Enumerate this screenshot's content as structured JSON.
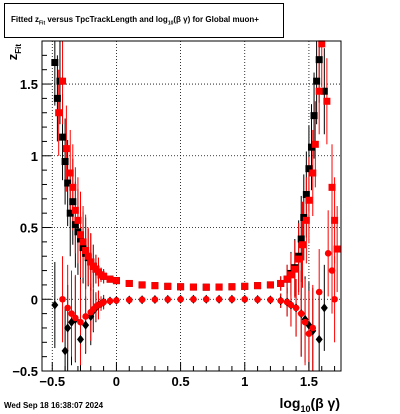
{
  "footer": {
    "timestamp": "Wed Sep 18 16:38:07 2024"
  },
  "chart_data": {
    "type": "scatter",
    "title": "Fitted z_Fit versus TpcTrackLength and log_10(β γ) for Global muon+",
    "title_parts": {
      "pre": "Fitted  z",
      "sub1": "Fit",
      "mid": "  versus TpcTrackLength and log",
      "sub2": "10",
      "post": "(β γ) for Global muon+"
    },
    "xlabel_parts": {
      "main": "log",
      "sub": "10",
      "tail": "(β γ)"
    },
    "ylabel_parts": {
      "main": "z",
      "sub": "Fit"
    },
    "xlim": [
      -0.58,
      1.75
    ],
    "ylim": [
      -0.5,
      1.8
    ],
    "grid": true,
    "xticks": [
      -0.5,
      0,
      0.5,
      1,
      1.5
    ],
    "xtick_labels": [
      "−0.5",
      "0",
      "0.5",
      "1",
      "1.5"
    ],
    "yticks": [
      -0.5,
      0,
      0.5,
      1,
      1.5
    ],
    "ytick_labels": [
      "−0.5",
      "0",
      "0.5",
      "1",
      "1.5"
    ],
    "series": [
      {
        "color": "#000000",
        "marker": "square",
        "points": [
          [
            -0.48,
            1.65,
            0.3
          ],
          [
            -0.46,
            1.4,
            0.3
          ],
          [
            -0.44,
            1.52,
            0.3
          ],
          [
            -0.42,
            1.13,
            0.3
          ],
          [
            -0.4,
            0.96,
            0.3
          ],
          [
            -0.38,
            0.81,
            0.3
          ],
          [
            -0.36,
            0.6,
            0.3
          ],
          [
            -0.34,
            0.68,
            0.3
          ],
          [
            -0.32,
            0.52,
            0.3
          ],
          [
            -0.3,
            0.47,
            0.3
          ],
          [
            -0.28,
            0.42,
            0.3
          ],
          [
            -0.26,
            0.36,
            0.25
          ],
          [
            -0.24,
            0.32,
            0.25
          ],
          [
            -0.22,
            0.29,
            0.2
          ],
          [
            -0.2,
            0.26,
            0.2
          ],
          [
            -0.18,
            0.23,
            0.15
          ],
          [
            -0.16,
            0.21,
            0.1
          ],
          [
            -0.14,
            0.19,
            0.1
          ],
          [
            -0.12,
            0.17,
            0.05
          ],
          [
            -0.1,
            0.16,
            0.05
          ],
          [
            -0.05,
            0.14,
            0
          ],
          [
            0.0,
            0.13,
            0
          ],
          [
            0.1,
            0.11,
            0
          ],
          [
            0.2,
            0.1,
            0
          ],
          [
            0.3,
            0.095,
            0
          ],
          [
            0.4,
            0.09,
            0
          ],
          [
            0.5,
            0.087,
            0
          ],
          [
            0.6,
            0.085,
            0
          ],
          [
            0.7,
            0.084,
            0
          ],
          [
            0.8,
            0.085,
            0
          ],
          [
            0.9,
            0.087,
            0
          ],
          [
            1.0,
            0.09,
            0
          ],
          [
            1.1,
            0.095,
            0
          ],
          [
            1.2,
            0.1,
            0
          ],
          [
            1.28,
            0.11,
            0.05
          ],
          [
            1.33,
            0.14,
            0.1
          ],
          [
            1.36,
            0.18,
            0.15
          ],
          [
            1.39,
            0.22,
            0.2
          ],
          [
            1.42,
            0.3,
            0.25
          ],
          [
            1.44,
            0.42,
            0.3
          ],
          [
            1.46,
            0.57,
            0.3
          ],
          [
            1.48,
            0.73,
            0.3
          ],
          [
            1.5,
            0.91,
            0.3
          ],
          [
            1.52,
            1.06,
            0.3
          ],
          [
            1.54,
            1.28,
            0.3
          ],
          [
            1.56,
            1.52,
            0.3
          ],
          [
            1.58,
            1.67,
            0.3
          ],
          [
            1.62,
            1.45,
            0.3
          ]
        ]
      },
      {
        "color": "#ff0000",
        "marker": "square",
        "points": [
          [
            -0.45,
            1.3,
            0.3
          ],
          [
            -0.42,
            1.52,
            0.3
          ],
          [
            -0.39,
            1.05,
            0.3
          ],
          [
            -0.36,
            0.88,
            0.3
          ],
          [
            -0.34,
            0.78,
            0.3
          ],
          [
            -0.32,
            0.62,
            0.3
          ],
          [
            -0.3,
            0.55,
            0.3
          ],
          [
            -0.28,
            0.45,
            0.3
          ],
          [
            -0.26,
            0.4,
            0.25
          ],
          [
            -0.24,
            0.34,
            0.25
          ],
          [
            -0.22,
            0.3,
            0.2
          ],
          [
            -0.2,
            0.26,
            0.2
          ],
          [
            -0.18,
            0.23,
            0.15
          ],
          [
            -0.16,
            0.21,
            0.1
          ],
          [
            -0.14,
            0.19,
            0.1
          ],
          [
            -0.12,
            0.17,
            0.05
          ],
          [
            -0.1,
            0.16,
            0.05
          ],
          [
            -0.05,
            0.14,
            0
          ],
          [
            0.0,
            0.13,
            0
          ],
          [
            0.1,
            0.11,
            0
          ],
          [
            0.2,
            0.1,
            0
          ],
          [
            0.3,
            0.095,
            0
          ],
          [
            0.4,
            0.09,
            0
          ],
          [
            0.5,
            0.087,
            0
          ],
          [
            0.6,
            0.085,
            0
          ],
          [
            0.7,
            0.084,
            0
          ],
          [
            0.8,
            0.085,
            0
          ],
          [
            0.9,
            0.087,
            0
          ],
          [
            1.0,
            0.09,
            0
          ],
          [
            1.1,
            0.095,
            0
          ],
          [
            1.2,
            0.1,
            0
          ],
          [
            1.28,
            0.11,
            0.05
          ],
          [
            1.33,
            0.14,
            0.1
          ],
          [
            1.36,
            0.17,
            0.15
          ],
          [
            1.39,
            0.21,
            0.2
          ],
          [
            1.42,
            0.28,
            0.25
          ],
          [
            1.45,
            0.38,
            0.3
          ],
          [
            1.48,
            0.55,
            0.3
          ],
          [
            1.5,
            0.69,
            0.3
          ],
          [
            1.53,
            0.88,
            0.3
          ],
          [
            1.55,
            1.08,
            0.3
          ],
          [
            1.58,
            1.45,
            0.3
          ],
          [
            1.6,
            1.78,
            0.3
          ],
          [
            1.64,
            1.38,
            0.3
          ],
          [
            1.68,
            0.78,
            0.3
          ],
          [
            1.7,
            0.55,
            0.3
          ],
          [
            1.72,
            0.35,
            0.3
          ]
        ]
      },
      {
        "color": "#000000",
        "marker": "diamond",
        "points": [
          [
            -0.48,
            -0.04,
            0.3
          ],
          [
            -0.4,
            -0.36,
            0.3
          ],
          [
            -0.38,
            -0.2,
            0.3
          ],
          [
            -0.35,
            -0.16,
            0.3
          ],
          [
            -0.32,
            -0.14,
            0.3
          ],
          [
            -0.28,
            -0.28,
            0.3
          ],
          [
            -0.24,
            -0.18,
            0.2
          ],
          [
            -0.2,
            -0.12,
            0.2
          ],
          [
            -0.18,
            -0.08,
            0.15
          ],
          [
            -0.16,
            -0.06,
            0.1
          ],
          [
            -0.14,
            -0.04,
            0.1
          ],
          [
            -0.12,
            -0.03,
            0.05
          ],
          [
            -0.1,
            -0.02,
            0.05
          ],
          [
            -0.05,
            -0.012,
            0
          ],
          [
            0.0,
            -0.008,
            0
          ],
          [
            0.1,
            -0.005,
            0
          ],
          [
            0.2,
            -0.003,
            0
          ],
          [
            0.3,
            -0.002,
            0
          ],
          [
            0.4,
            -0.001,
            0
          ],
          [
            0.5,
            0.0,
            0
          ],
          [
            0.6,
            0.0,
            0
          ],
          [
            0.7,
            0.0,
            0
          ],
          [
            0.8,
            0.0,
            0
          ],
          [
            0.9,
            0.0,
            0
          ],
          [
            1.0,
            0.0,
            0
          ],
          [
            1.1,
            -0.002,
            0
          ],
          [
            1.2,
            -0.004,
            0
          ],
          [
            1.28,
            -0.01,
            0.05
          ],
          [
            1.33,
            -0.02,
            0.1
          ],
          [
            1.36,
            -0.04,
            0.15
          ],
          [
            1.4,
            -0.06,
            0.2
          ],
          [
            1.44,
            -0.1,
            0.3
          ],
          [
            1.47,
            -0.14,
            0.3
          ],
          [
            1.5,
            -0.18,
            0.3
          ],
          [
            1.53,
            -0.22,
            0.3
          ],
          [
            1.58,
            -0.28,
            0.3
          ],
          [
            1.62,
            -0.06,
            0.3
          ]
        ]
      },
      {
        "color": "#ff0000",
        "marker": "circle",
        "points": [
          [
            -0.42,
            0.0,
            0.3
          ],
          [
            -0.38,
            -0.06,
            0.3
          ],
          [
            -0.35,
            -0.1,
            0.3
          ],
          [
            -0.32,
            -0.13,
            0.3
          ],
          [
            -0.28,
            -0.16,
            0.3
          ],
          [
            -0.24,
            -0.12,
            0.25
          ],
          [
            -0.2,
            -0.09,
            0.2
          ],
          [
            -0.18,
            -0.07,
            0.15
          ],
          [
            -0.16,
            -0.05,
            0.1
          ],
          [
            -0.14,
            -0.04,
            0.1
          ],
          [
            -0.12,
            -0.03,
            0.05
          ],
          [
            -0.1,
            -0.02,
            0.05
          ],
          [
            -0.05,
            -0.012,
            0
          ],
          [
            0.0,
            -0.008,
            0
          ],
          [
            0.1,
            -0.005,
            0
          ],
          [
            0.2,
            -0.003,
            0
          ],
          [
            0.3,
            -0.002,
            0
          ],
          [
            0.4,
            -0.001,
            0
          ],
          [
            0.5,
            0.0,
            0
          ],
          [
            0.6,
            0.0,
            0
          ],
          [
            0.7,
            0.0,
            0
          ],
          [
            0.8,
            0.0,
            0
          ],
          [
            0.9,
            0.0,
            0
          ],
          [
            1.0,
            0.0,
            0
          ],
          [
            1.1,
            -0.002,
            0
          ],
          [
            1.2,
            -0.004,
            0
          ],
          [
            1.28,
            -0.01,
            0.05
          ],
          [
            1.33,
            -0.02,
            0.1
          ],
          [
            1.36,
            -0.04,
            0.15
          ],
          [
            1.4,
            -0.06,
            0.2
          ],
          [
            1.44,
            -0.1,
            0.3
          ],
          [
            1.47,
            -0.16,
            0.3
          ],
          [
            1.5,
            -0.24,
            0.3
          ],
          [
            1.53,
            -0.2,
            0.3
          ],
          [
            1.58,
            0.05,
            0.3
          ],
          [
            1.65,
            0.32,
            0.3
          ],
          [
            1.68,
            0.2,
            0.3
          ],
          [
            1.7,
            0.0,
            0.3
          ]
        ]
      }
    ]
  }
}
